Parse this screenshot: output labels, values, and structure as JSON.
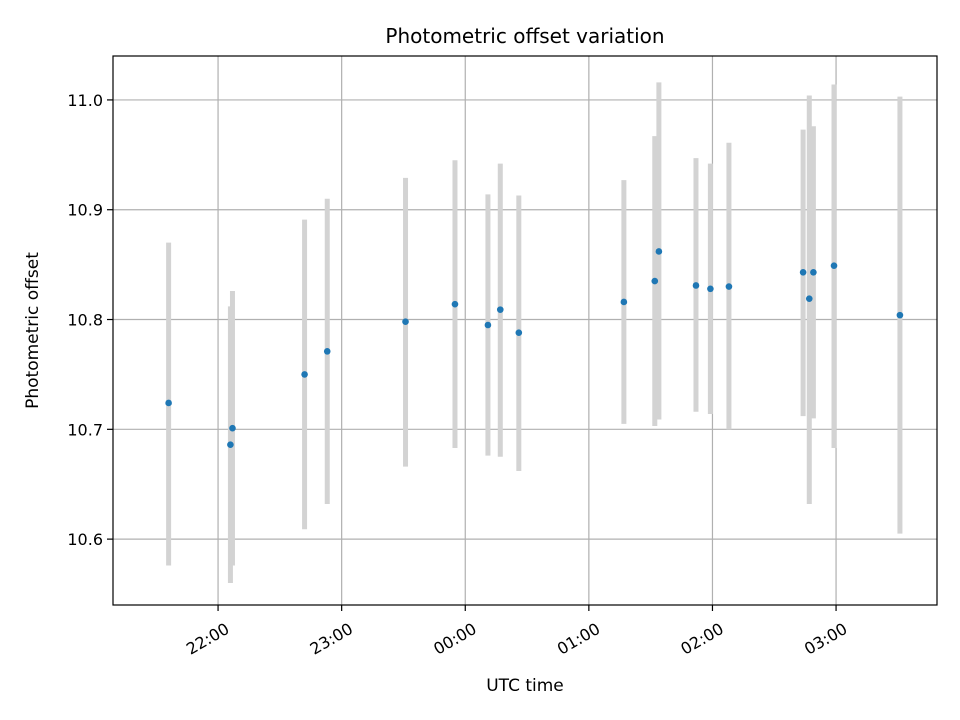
{
  "chart_data": {
    "type": "scatter",
    "title": "Photometric offset variation",
    "xlabel": "UTC time",
    "ylabel": "Photometric offset",
    "grid": true,
    "xlim": [
      "21:09",
      "03:49"
    ],
    "ylim": [
      10.54,
      11.04
    ],
    "xticks": [
      "22:00",
      "23:00",
      "00:00",
      "01:00",
      "02:00",
      "03:00"
    ],
    "yticks": [
      10.6,
      10.7,
      10.8,
      10.9,
      11.0
    ],
    "colors": {
      "point": "#1f77b4",
      "errorbar": "#d3d3d3",
      "grid": "#b0b0b0",
      "axes": "#000000"
    },
    "points": [
      {
        "t": "21:36",
        "y": 10.724,
        "lo": 10.576,
        "hi": 10.87
      },
      {
        "t": "22:06",
        "y": 10.686,
        "lo": 10.56,
        "hi": 10.812
      },
      {
        "t": "22:07",
        "y": 10.701,
        "lo": 10.576,
        "hi": 10.826
      },
      {
        "t": "22:42",
        "y": 10.75,
        "lo": 10.609,
        "hi": 10.891
      },
      {
        "t": "22:53",
        "y": 10.771,
        "lo": 10.632,
        "hi": 10.91
      },
      {
        "t": "23:31",
        "y": 10.798,
        "lo": 10.666,
        "hi": 10.929
      },
      {
        "t": "23:55",
        "y": 10.814,
        "lo": 10.683,
        "hi": 10.945
      },
      {
        "t": "00:11",
        "y": 10.795,
        "lo": 10.676,
        "hi": 10.914
      },
      {
        "t": "00:17",
        "y": 10.809,
        "lo": 10.675,
        "hi": 10.942
      },
      {
        "t": "00:26",
        "y": 10.788,
        "lo": 10.662,
        "hi": 10.913
      },
      {
        "t": "01:17",
        "y": 10.816,
        "lo": 10.705,
        "hi": 10.927
      },
      {
        "t": "01:32",
        "y": 10.835,
        "lo": 10.703,
        "hi": 10.967
      },
      {
        "t": "01:34",
        "y": 10.862,
        "lo": 10.709,
        "hi": 11.016
      },
      {
        "t": "01:52",
        "y": 10.831,
        "lo": 10.716,
        "hi": 10.947
      },
      {
        "t": "01:59",
        "y": 10.828,
        "lo": 10.714,
        "hi": 10.942
      },
      {
        "t": "02:08",
        "y": 10.83,
        "lo": 10.7,
        "hi": 10.961
      },
      {
        "t": "02:44",
        "y": 10.843,
        "lo": 10.712,
        "hi": 10.973
      },
      {
        "t": "02:47",
        "y": 10.819,
        "lo": 10.632,
        "hi": 11.004
      },
      {
        "t": "02:49",
        "y": 10.843,
        "lo": 10.71,
        "hi": 10.976
      },
      {
        "t": "02:59",
        "y": 10.849,
        "lo": 10.683,
        "hi": 11.014
      },
      {
        "t": "03:31",
        "y": 10.804,
        "lo": 10.605,
        "hi": 11.003
      }
    ]
  }
}
